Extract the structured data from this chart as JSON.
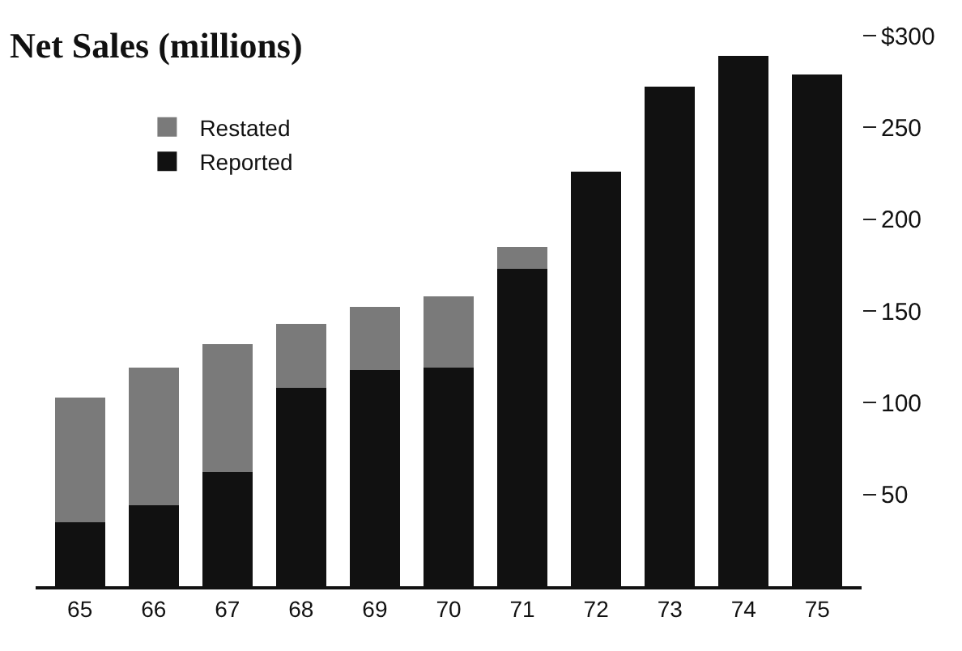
{
  "chart_data": {
    "type": "bar",
    "title": "Net Sales (millions)",
    "stacked": true,
    "categories": [
      "65",
      "66",
      "67",
      "68",
      "69",
      "70",
      "71",
      "72",
      "73",
      "74",
      "75"
    ],
    "series": [
      {
        "name": "Reported",
        "color": "#111111",
        "values": [
          35,
          44,
          62,
          108,
          118,
          119,
          173,
          226,
          272,
          289,
          279
        ]
      },
      {
        "name": "Restated",
        "color": "#7a7a7a",
        "values": [
          68,
          75,
          70,
          35,
          34,
          39,
          12,
          0,
          0,
          0,
          0
        ]
      }
    ],
    "ylim": [
      0,
      300
    ],
    "yticks": [
      50,
      100,
      150,
      200,
      250,
      {
        "value": 300,
        "label": "$300"
      }
    ],
    "grid": false,
    "legend": "top left"
  }
}
